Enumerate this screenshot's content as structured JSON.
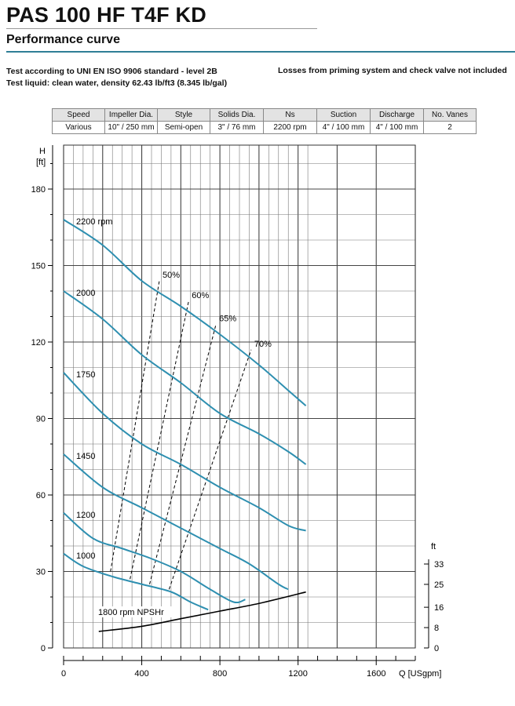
{
  "header": {
    "title": "PAS 100 HF T4F KD",
    "subtitle": "Performance curve",
    "standard_line": "Test according to UNI EN ISO 9906 standard - level 2B",
    "liquid_line": "Test liquid: clean water, density 62.43 lb/ft3 (8.345 lb/gal)",
    "losses_note": "Losses from priming system and check valve not included"
  },
  "specs": {
    "headers": [
      "Speed",
      "Impeller Dia.",
      "Style",
      "Solids Dia.",
      "Ns",
      "Suction",
      "Discharge",
      "No. Vanes"
    ],
    "values": [
      "Various",
      "10\" / 250 mm",
      "Semi-open",
      "3\" / 76 mm",
      "2200 rpm",
      "4\" / 100 mm",
      "4\" / 100 mm",
      "2"
    ]
  },
  "colors": {
    "curve": "#2e8fb0",
    "npsh": "#000000",
    "grid": "#777777"
  },
  "chart_data": {
    "type": "line",
    "xlabel": "Q [USgpm]",
    "ylabel_line1": "H",
    "ylabel_line2": "[ft]",
    "y2label": "ft",
    "xlim": [
      0,
      1800
    ],
    "ylim": [
      0,
      190
    ],
    "y2lim": [
      0,
      33
    ],
    "x_ticks": [
      0,
      400,
      800,
      1200,
      1600
    ],
    "y_ticks": [
      0,
      30,
      60,
      90,
      120,
      150,
      180
    ],
    "y2_ticks": [
      0,
      8,
      16,
      25,
      33
    ],
    "series": [
      {
        "name": "2200 rpm",
        "label": "2200 rpm",
        "points": [
          [
            0,
            168
          ],
          [
            200,
            158
          ],
          [
            400,
            144
          ],
          [
            600,
            134
          ],
          [
            800,
            123
          ],
          [
            1000,
            111
          ],
          [
            1150,
            101
          ],
          [
            1240,
            95
          ]
        ]
      },
      {
        "name": "2000",
        "label": "2000",
        "points": [
          [
            0,
            140
          ],
          [
            200,
            129
          ],
          [
            400,
            115
          ],
          [
            600,
            104
          ],
          [
            800,
            92
          ],
          [
            1000,
            84
          ],
          [
            1150,
            77
          ],
          [
            1240,
            72
          ]
        ]
      },
      {
        "name": "1750",
        "label": "1750",
        "points": [
          [
            0,
            108
          ],
          [
            200,
            92
          ],
          [
            400,
            80
          ],
          [
            600,
            72
          ],
          [
            800,
            63
          ],
          [
            1000,
            55
          ],
          [
            1150,
            48
          ],
          [
            1240,
            46
          ]
        ]
      },
      {
        "name": "1450",
        "label": "1450",
        "points": [
          [
            0,
            76
          ],
          [
            200,
            63
          ],
          [
            400,
            55
          ],
          [
            600,
            47
          ],
          [
            800,
            39
          ],
          [
            950,
            33
          ],
          [
            1100,
            25
          ],
          [
            1150,
            23
          ]
        ]
      },
      {
        "name": "1200",
        "label": "1200",
        "points": [
          [
            0,
            53
          ],
          [
            150,
            43
          ],
          [
            300,
            39
          ],
          [
            450,
            35
          ],
          [
            600,
            30
          ],
          [
            750,
            23
          ],
          [
            870,
            18
          ],
          [
            930,
            19
          ]
        ]
      },
      {
        "name": "1000",
        "label": "1000",
        "points": [
          [
            0,
            37
          ],
          [
            100,
            32
          ],
          [
            250,
            28
          ],
          [
            400,
            25
          ],
          [
            550,
            22
          ],
          [
            650,
            18
          ],
          [
            740,
            15
          ]
        ]
      }
    ],
    "npsh": {
      "name": "1800 rpm NPSHr",
      "label": "1800 rpm NPSHr",
      "points_ft": [
        [
          180,
          6.5
        ],
        [
          400,
          8.5
        ],
        [
          600,
          11.5
        ],
        [
          800,
          14.5
        ],
        [
          1000,
          17.5
        ],
        [
          1240,
          22
        ]
      ]
    },
    "efficiency_lines": [
      {
        "label": "50%",
        "points": [
          [
            240,
            30
          ],
          [
            490,
            144
          ]
        ]
      },
      {
        "label": "60%",
        "points": [
          [
            340,
            27
          ],
          [
            640,
            136
          ]
        ]
      },
      {
        "label": "65%",
        "points": [
          [
            440,
            25
          ],
          [
            780,
            127
          ]
        ]
      },
      {
        "label": "70%",
        "points": [
          [
            540,
            23
          ],
          [
            960,
            117
          ]
        ]
      }
    ]
  }
}
